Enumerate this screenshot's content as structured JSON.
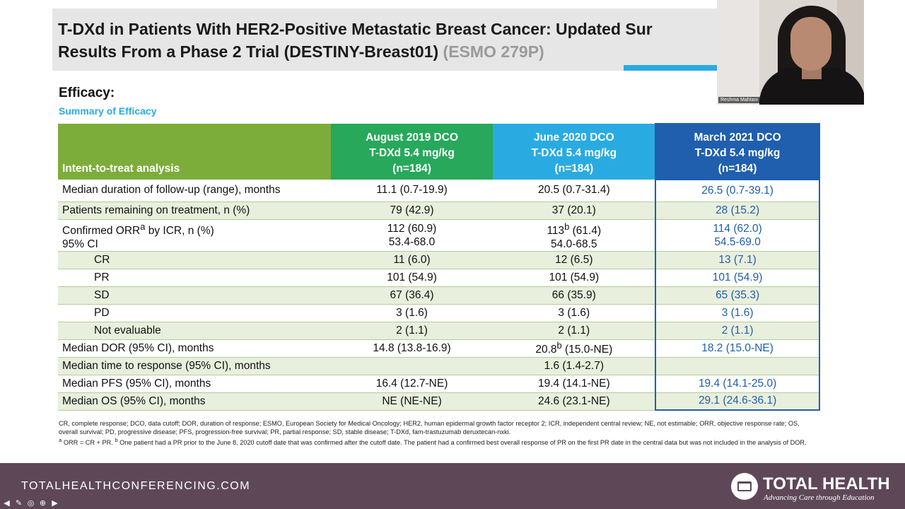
{
  "slide": {
    "title_line1": "T-DXd in Patients With HER2-Positive Metastatic Breast Cancer: Updated Sur",
    "title_line2": "Results From a Phase 2 Trial (DESTINY-Breast01)",
    "title_ref": "(ESMO 279P)",
    "section": "Efficacy:",
    "subtitle": "Summary of Efficacy"
  },
  "video": {
    "name": "Reshma Mahtani"
  },
  "table": {
    "headers": [
      "Intent-to-treat analysis",
      [
        "August 2019 DCO",
        "T-DXd 5.4 mg/kg",
        "(n=184)"
      ],
      [
        "June 2020 DCO",
        "T-DXd 5.4 mg/kg",
        "(n=184)"
      ],
      [
        "March 2021 DCO",
        "T-DXd 5.4 mg/kg",
        "(n=184)"
      ]
    ],
    "rows": [
      [
        "Median duration of follow-up (range), months",
        "11.1 (0.7-19.9)",
        "20.5 (0.7-31.4)",
        "26.5 (0.7-39.1)"
      ],
      [
        "Patients remaining on treatment, n (%)",
        "79 (42.9)",
        "37 (20.1)",
        "28 (15.2)"
      ],
      {
        "label1": "Confirmed ORR",
        "label1_sup": "a",
        "label1_rest": " by ICR, n (%)",
        "label2": "95% CI",
        "c1a": "112 (60.9)",
        "c1b": "53.4-68.0",
        "c2a": "113",
        "c2a_sup": "b",
        "c2a_rest": " (61.4)",
        "c2b": "54.0-68.5",
        "c3a": "114 (62.0)",
        "c3b": "54.5-69.0"
      },
      [
        "CR",
        "11 (6.0)",
        "12 (6.5)",
        "13 (7.1)"
      ],
      [
        "PR",
        "101 (54.9)",
        "101 (54.9)",
        "101 (54.9)"
      ],
      [
        "SD",
        "67 (36.4)",
        "66 (35.9)",
        "65 (35.3)"
      ],
      [
        "PD",
        "3 (1.6)",
        "3 (1.6)",
        "3 (1.6)"
      ],
      [
        "Not evaluable",
        "2 (1.1)",
        "2 (1.1)",
        "2 (1.1)"
      ],
      {
        "label": "Median DOR (95% CI), months",
        "c1": "14.8 (13.8-16.9)",
        "c2a": "20.8",
        "c2a_sup": "b",
        "c2a_rest": " (15.0-NE)",
        "c3": "18.2 (15.0-NE)"
      },
      [
        "Median time to response (95% CI), months",
        "",
        "1.6 (1.4-2.7)",
        ""
      ],
      [
        "Median PFS (95% CI), months",
        "16.4 (12.7-NE)",
        "19.4 (14.1-NE)",
        "19.4 (14.1-25.0)"
      ],
      [
        "Median OS (95% CI), months",
        "NE (NE-NE)",
        "24.6 (23.1-NE)",
        "29.1 (24.6-36.1)"
      ]
    ]
  },
  "footnotes": {
    "abbrev": "CR, complete response; DCO, data cutoff; DOR, duration of response; ESMO, European Society for Medical Oncology; HER2, human epidermal growth factor receptor 2; ICR, independent central review; NE, not estimable; ORR, objective response rate; OS, overall survival; PD, progressive disease; PFS, progression-free survival; PR, partial response; SD, stable disease; T-DXd, fam-trastuzumab deruxtecan-nxki.",
    "note_a_mark": "a",
    "note_a": " ORR = CR + PR. ",
    "note_b_mark": "b",
    "note_b": " One patient had a PR prior to the June 8, 2020 cutoff date that was confirmed after the cutoff date. The patient had a confirmed best overall response of PR on the first PR date in the central data but was not included in the analysis of DOR."
  },
  "footer": {
    "url": "TOTALHEALTHCONFERENCING.COM",
    "brand": "TOTAL HEALTH",
    "tagline": "Advancing Care through Education"
  },
  "colors": {
    "header_green": "#7cad3a",
    "col1_green": "#27a85b",
    "col2_blue": "#29abe2",
    "col3_navy": "#1f5fae",
    "footer_purple": "#5e4858"
  }
}
